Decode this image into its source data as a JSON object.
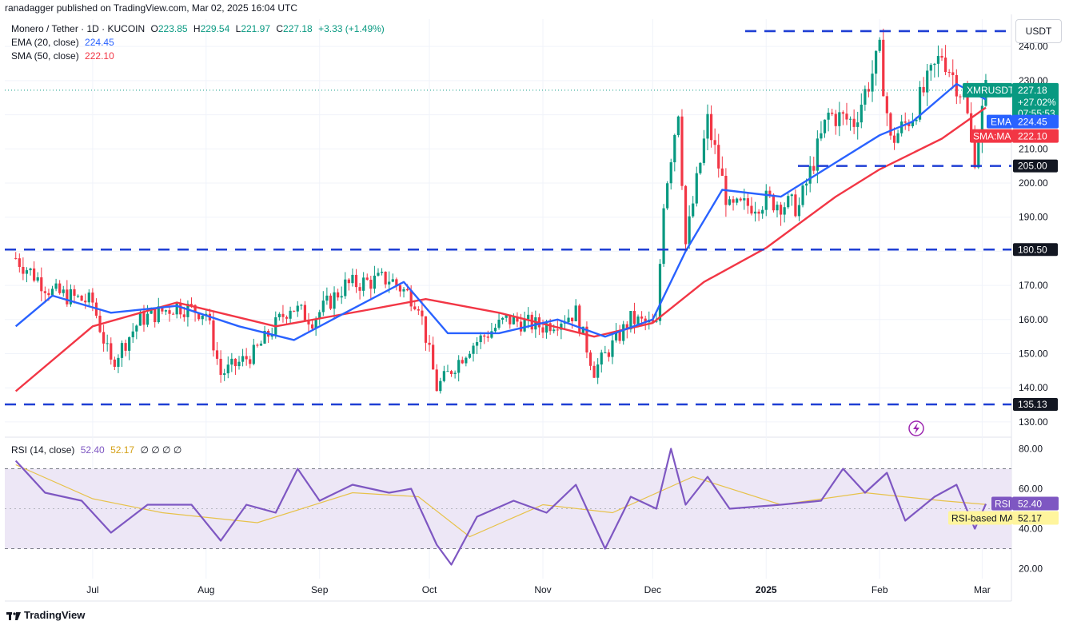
{
  "header": {
    "published_by": "ranadagger published on TradingView.com, Mar 02, 2025 16:04 UTC"
  },
  "legend": {
    "symbol": "Monero / Tether · 1D · KUCOIN",
    "o_label": "O",
    "o": "223.85",
    "h_label": "H",
    "h": "229.54",
    "l_label": "L",
    "l": "221.97",
    "c_label": "C",
    "c": "227.18",
    "change": "+3.33 (+1.49%)",
    "ema_label": "EMA (20, close)",
    "ema_value": "224.45",
    "sma_label": "SMA (50, close)",
    "sma_value": "222.10",
    "rsi_label": "RSI (14, close)",
    "rsi_value": "52.40",
    "rsi_ma_value": "52.17",
    "rsi_extra": "∅ ∅ ∅ ∅"
  },
  "currency_badge": "USDT",
  "footer": {
    "brand": "TradingView"
  },
  "colors": {
    "up": "#089981",
    "down": "#f23645",
    "ema": "#2962ff",
    "sma": "#f23645",
    "rsi": "#7e57c2",
    "rsi_ma": "#e7c24b",
    "level": "#1f3fd4",
    "rsi_band": "#ede7f6"
  },
  "chart_data": [
    {
      "type": "candlestick",
      "title": "Monero / Tether · 1D · KUCOIN",
      "x_tick_labels": [
        "Jul",
        "Aug",
        "Sep",
        "Oct",
        "Nov",
        "Dec",
        "2025",
        "Feb",
        "Mar"
      ],
      "y_ticks": [
        "240.00",
        "230.00",
        "220.00",
        "210.00",
        "200.00",
        "190.00",
        "180.00",
        "170.00",
        "160.00",
        "150.00",
        "140.00",
        "130.00"
      ],
      "y_range": [
        126,
        248
      ],
      "horizontal_levels": [
        {
          "value": 244.5,
          "label": ""
        },
        {
          "value": 205.0,
          "label": "205.00"
        },
        {
          "value": 180.5,
          "label": "180.50"
        },
        {
          "value": 135.13,
          "label": "135.13"
        }
      ],
      "price_labels": {
        "symbol": "XMRUSDT",
        "last": "227.18",
        "change_pct": "+27.02%",
        "countdown": "07:55:53",
        "ema_tag": "EMA",
        "ema": "224.45",
        "sma_tag": "SMA:MA",
        "sma": "222.10"
      },
      "close_series_approx": [
        {
          "date": "2024-06-10",
          "close": 178
        },
        {
          "date": "2024-06-20",
          "close": 168
        },
        {
          "date": "2024-07-01",
          "close": 165
        },
        {
          "date": "2024-07-06",
          "close": 147
        },
        {
          "date": "2024-07-14",
          "close": 160
        },
        {
          "date": "2024-07-24",
          "close": 164
        },
        {
          "date": "2024-08-01",
          "close": 162
        },
        {
          "date": "2024-08-05",
          "close": 144
        },
        {
          "date": "2024-08-14",
          "close": 150
        },
        {
          "date": "2024-08-24",
          "close": 164
        },
        {
          "date": "2024-08-30",
          "close": 160
        },
        {
          "date": "2024-09-08",
          "close": 170
        },
        {
          "date": "2024-09-20",
          "close": 172
        },
        {
          "date": "2024-09-28",
          "close": 165
        },
        {
          "date": "2024-10-03",
          "close": 140
        },
        {
          "date": "2024-10-12",
          "close": 152
        },
        {
          "date": "2024-10-22",
          "close": 160
        },
        {
          "date": "2024-11-01",
          "close": 158
        },
        {
          "date": "2024-11-10",
          "close": 162
        },
        {
          "date": "2024-11-15",
          "close": 145
        },
        {
          "date": "2024-11-25",
          "close": 160
        },
        {
          "date": "2024-12-02",
          "close": 158
        },
        {
          "date": "2024-12-04",
          "close": 195
        },
        {
          "date": "2024-12-08",
          "close": 222
        },
        {
          "date": "2024-12-10",
          "close": 182
        },
        {
          "date": "2024-12-16",
          "close": 218
        },
        {
          "date": "2024-12-22",
          "close": 192
        },
        {
          "date": "2025-01-01",
          "close": 195
        },
        {
          "date": "2025-01-10",
          "close": 193
        },
        {
          "date": "2025-01-18",
          "close": 220
        },
        {
          "date": "2025-01-25",
          "close": 218
        },
        {
          "date": "2025-02-01",
          "close": 238
        },
        {
          "date": "2025-02-04",
          "close": 212
        },
        {
          "date": "2025-02-10",
          "close": 220
        },
        {
          "date": "2025-02-18",
          "close": 238
        },
        {
          "date": "2025-02-24",
          "close": 225
        },
        {
          "date": "2025-02-27",
          "close": 208
        },
        {
          "date": "2025-03-02",
          "close": 227.18
        }
      ],
      "ema20_approx": [
        {
          "date": "2024-06-10",
          "value": 158
        },
        {
          "date": "2024-06-20",
          "value": 167
        },
        {
          "date": "2024-07-06",
          "value": 162
        },
        {
          "date": "2024-07-24",
          "value": 164
        },
        {
          "date": "2024-08-10",
          "value": 158
        },
        {
          "date": "2024-08-25",
          "value": 154
        },
        {
          "date": "2024-09-08",
          "value": 162
        },
        {
          "date": "2024-09-24",
          "value": 171
        },
        {
          "date": "2024-10-06",
          "value": 156
        },
        {
          "date": "2024-10-20",
          "value": 156
        },
        {
          "date": "2024-11-05",
          "value": 160
        },
        {
          "date": "2024-11-18",
          "value": 155
        },
        {
          "date": "2024-12-01",
          "value": 160
        },
        {
          "date": "2024-12-10",
          "value": 180
        },
        {
          "date": "2024-12-20",
          "value": 198
        },
        {
          "date": "2025-01-05",
          "value": 196
        },
        {
          "date": "2025-01-20",
          "value": 206
        },
        {
          "date": "2025-02-01",
          "value": 214
        },
        {
          "date": "2025-02-10",
          "value": 218
        },
        {
          "date": "2025-02-22",
          "value": 229
        },
        {
          "date": "2025-03-02",
          "value": 224.45
        }
      ],
      "sma50_approx": [
        {
          "date": "2024-06-10",
          "value": 139
        },
        {
          "date": "2024-07-01",
          "value": 158
        },
        {
          "date": "2024-07-24",
          "value": 165
        },
        {
          "date": "2024-08-20",
          "value": 158
        },
        {
          "date": "2024-09-15",
          "value": 163
        },
        {
          "date": "2024-09-30",
          "value": 166
        },
        {
          "date": "2024-10-20",
          "value": 162
        },
        {
          "date": "2024-11-15",
          "value": 155
        },
        {
          "date": "2024-12-01",
          "value": 159
        },
        {
          "date": "2024-12-15",
          "value": 171
        },
        {
          "date": "2025-01-01",
          "value": 181
        },
        {
          "date": "2025-01-20",
          "value": 196
        },
        {
          "date": "2025-02-01",
          "value": 204
        },
        {
          "date": "2025-02-18",
          "value": 213
        },
        {
          "date": "2025-03-02",
          "value": 222.1
        }
      ]
    },
    {
      "type": "line",
      "title": "RSI (14, close)",
      "y_ticks": [
        "80.00",
        "60.00",
        "40.00",
        "20.00"
      ],
      "y_range": [
        15,
        85
      ],
      "band": [
        30,
        70
      ],
      "midline": 50,
      "price_labels": {
        "rsi_tag": "RSI",
        "rsi": "52.40",
        "rsi_ma_tag": "RSI-based MA",
        "rsi_ma": "52.17"
      },
      "rsi_approx": [
        {
          "date": "2024-06-10",
          "value": 74
        },
        {
          "date": "2024-06-18",
          "value": 58
        },
        {
          "date": "2024-06-28",
          "value": 54
        },
        {
          "date": "2024-07-06",
          "value": 38
        },
        {
          "date": "2024-07-16",
          "value": 52
        },
        {
          "date": "2024-07-28",
          "value": 52
        },
        {
          "date": "2024-08-05",
          "value": 34
        },
        {
          "date": "2024-08-12",
          "value": 52
        },
        {
          "date": "2024-08-20",
          "value": 48
        },
        {
          "date": "2024-08-26",
          "value": 70
        },
        {
          "date": "2024-09-01",
          "value": 54
        },
        {
          "date": "2024-09-10",
          "value": 62
        },
        {
          "date": "2024-09-20",
          "value": 58
        },
        {
          "date": "2024-09-26",
          "value": 60
        },
        {
          "date": "2024-10-03",
          "value": 32
        },
        {
          "date": "2024-10-07",
          "value": 22
        },
        {
          "date": "2024-10-14",
          "value": 46
        },
        {
          "date": "2024-10-24",
          "value": 54
        },
        {
          "date": "2024-11-02",
          "value": 48
        },
        {
          "date": "2024-11-10",
          "value": 62
        },
        {
          "date": "2024-11-18",
          "value": 30
        },
        {
          "date": "2024-11-25",
          "value": 56
        },
        {
          "date": "2024-12-02",
          "value": 50
        },
        {
          "date": "2024-12-06",
          "value": 80
        },
        {
          "date": "2024-12-10",
          "value": 52
        },
        {
          "date": "2024-12-16",
          "value": 66
        },
        {
          "date": "2024-12-22",
          "value": 50
        },
        {
          "date": "2025-01-05",
          "value": 52
        },
        {
          "date": "2025-01-16",
          "value": 54
        },
        {
          "date": "2025-01-22",
          "value": 70
        },
        {
          "date": "2025-01-28",
          "value": 58
        },
        {
          "date": "2025-02-03",
          "value": 68
        },
        {
          "date": "2025-02-08",
          "value": 44
        },
        {
          "date": "2025-02-16",
          "value": 56
        },
        {
          "date": "2025-02-22",
          "value": 62
        },
        {
          "date": "2025-02-27",
          "value": 40
        },
        {
          "date": "2025-03-02",
          "value": 52.4
        }
      ],
      "rsi_ma_approx": [
        {
          "date": "2024-06-10",
          "value": 72
        },
        {
          "date": "2024-07-01",
          "value": 55
        },
        {
          "date": "2024-07-20",
          "value": 48
        },
        {
          "date": "2024-08-15",
          "value": 43
        },
        {
          "date": "2024-09-10",
          "value": 58
        },
        {
          "date": "2024-09-28",
          "value": 56
        },
        {
          "date": "2024-10-12",
          "value": 36
        },
        {
          "date": "2024-11-01",
          "value": 52
        },
        {
          "date": "2024-11-20",
          "value": 48
        },
        {
          "date": "2024-12-12",
          "value": 66
        },
        {
          "date": "2025-01-05",
          "value": 52
        },
        {
          "date": "2025-01-28",
          "value": 58
        },
        {
          "date": "2025-02-18",
          "value": 54
        },
        {
          "date": "2025-03-02",
          "value": 52.17
        }
      ]
    }
  ]
}
